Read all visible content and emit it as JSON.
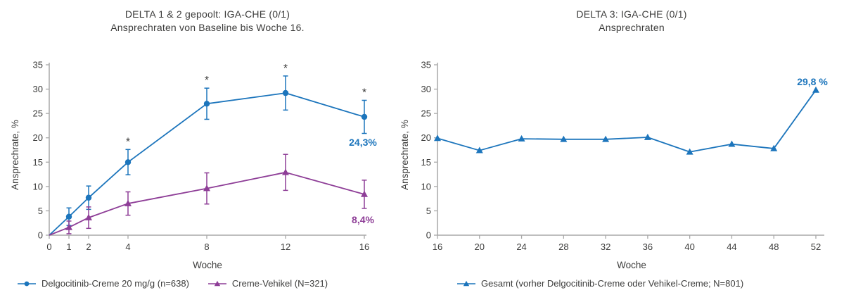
{
  "page": {
    "background": "#ffffff"
  },
  "colors": {
    "blue": "#1c75bc",
    "purple": "#8e3e97",
    "axis": "#a8a8a8",
    "text": "#3c3c3b"
  },
  "chart_data": [
    {
      "id": "delta12",
      "type": "line",
      "title_line1": "DELTA 1 & 2 gepoolt: IGA-CHE (0/1)",
      "title_line2": "Ansprechraten von Baseline bis Woche 16.",
      "xlabel": "Woche",
      "ylabel": "Ansprechrate, %",
      "xlim": [
        0,
        16
      ],
      "ylim": [
        0,
        35
      ],
      "xticks": [
        0,
        1,
        2,
        4,
        8,
        12,
        16
      ],
      "yticks": [
        0,
        5,
        10,
        15,
        20,
        25,
        30,
        35
      ],
      "grid": false,
      "legend_position": "bottom-left",
      "significance_marker": "*",
      "series": [
        {
          "name": "Delgocitinib-Creme 20 mg/g (n=638)",
          "color": "#1c75bc",
          "marker": "circle",
          "x": [
            0,
            1,
            2,
            4,
            8,
            12,
            16
          ],
          "y": [
            0,
            3.8,
            7.7,
            15.0,
            27.0,
            29.2,
            24.3
          ],
          "err": [
            0,
            1.8,
            2.4,
            2.6,
            3.2,
            3.5,
            3.4
          ],
          "sig": [
            false,
            false,
            false,
            true,
            true,
            true,
            true
          ],
          "end_label": "24,3%",
          "end_label_side": "below"
        },
        {
          "name": "Creme-Vehikel (N=321)",
          "color": "#8e3e97",
          "marker": "triangle",
          "x": [
            0,
            1,
            2,
            4,
            8,
            12,
            16
          ],
          "y": [
            0,
            1.6,
            3.6,
            6.5,
            9.6,
            12.9,
            8.4
          ],
          "err": [
            0,
            1.3,
            2.2,
            2.4,
            3.2,
            3.7,
            2.9
          ],
          "sig": [
            false,
            false,
            false,
            false,
            false,
            false,
            false
          ],
          "end_label": "8,4%",
          "end_label_side": "below"
        }
      ]
    },
    {
      "id": "delta3",
      "type": "line",
      "title_line1": "DELTA 3: IGA-CHE (0/1)",
      "title_line2": "Ansprechraten",
      "xlabel": "Woche",
      "ylabel": "Ansprechrate, %",
      "xlim": [
        16,
        52
      ],
      "ylim": [
        0,
        35
      ],
      "xticks": [
        16,
        20,
        24,
        28,
        32,
        36,
        40,
        44,
        48,
        52
      ],
      "yticks": [
        0,
        5,
        10,
        15,
        20,
        25,
        30,
        35
      ],
      "grid": false,
      "legend_position": "bottom-left",
      "series": [
        {
          "name": "Gesamt (vorher Delgocitinib-Creme oder Vehikel-Creme; N=801)",
          "color": "#1c75bc",
          "marker": "triangle",
          "x": [
            16,
            20,
            24,
            28,
            32,
            36,
            40,
            44,
            48,
            52
          ],
          "y": [
            19.9,
            17.4,
            19.8,
            19.7,
            19.7,
            20.1,
            17.1,
            18.7,
            17.8,
            29.8
          ],
          "end_label": "29,8 %",
          "end_label_side": "above"
        }
      ]
    }
  ]
}
